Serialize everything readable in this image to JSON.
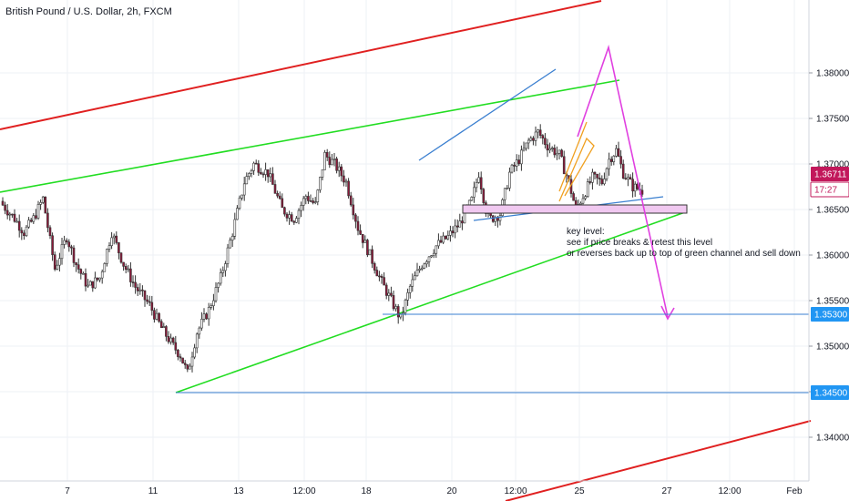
{
  "chart_data": {
    "type": "candlestick",
    "title": "British Pound / U.S. Dollar, 2h, FXCM",
    "symbol": "GBPUSD",
    "timeframe": "2h",
    "ylim": [
      1.336,
      1.3835
    ],
    "y_ticks": [
      "1.38000",
      "1.37500",
      "1.37000",
      "1.36500",
      "1.36000",
      "1.35500",
      "1.35000",
      "1.34500",
      "1.34000"
    ],
    "x_ticks": [
      "7",
      "11",
      "13",
      "12:00",
      "18",
      "20",
      "12:00",
      "25",
      "27",
      "12:00",
      "Feb"
    ],
    "last_price": "1.36711",
    "countdown": "17:27",
    "level_labels": [
      "1.35300",
      "1.34500"
    ],
    "annotation": [
      "key level:",
      "see if price breaks & retest this level",
      "or reverses back up to top of green channel and sell down"
    ],
    "colors": {
      "up": "#ffffff",
      "down": "#8a1a3a",
      "wick": "#333333",
      "green_channel": "#22dd22",
      "red_channel": "#e02020",
      "blue": "#3a7fd0",
      "magenta": "#e040e0",
      "orange": "#f0a020",
      "price_tag": "#c2185b",
      "level_tag": "#2196f3",
      "key_zone": "#f0c8f0"
    },
    "anchors": [
      [
        0,
        1.3655
      ],
      [
        5,
        1.364
      ],
      [
        9,
        1.3625
      ],
      [
        13,
        1.364
      ],
      [
        17,
        1.3662
      ],
      [
        22,
        1.3585
      ],
      [
        27,
        1.362
      ],
      [
        31,
        1.359
      ],
      [
        36,
        1.3565
      ],
      [
        41,
        1.3575
      ],
      [
        46,
        1.3625
      ],
      [
        51,
        1.359
      ],
      [
        56,
        1.3565
      ],
      [
        62,
        1.3545
      ],
      [
        67,
        1.352
      ],
      [
        72,
        1.35
      ],
      [
        75,
        1.349
      ],
      [
        78,
        1.347
      ],
      [
        82,
        1.3515
      ],
      [
        87,
        1.354
      ],
      [
        92,
        1.3575
      ],
      [
        97,
        1.3625
      ],
      [
        102,
        1.368
      ],
      [
        106,
        1.37
      ],
      [
        112,
        1.369
      ],
      [
        118,
        1.365
      ],
      [
        123,
        1.364
      ],
      [
        128,
        1.3665
      ],
      [
        132,
        1.3655
      ],
      [
        136,
        1.371
      ],
      [
        140,
        1.37
      ],
      [
        145,
        1.368
      ],
      [
        150,
        1.363
      ],
      [
        155,
        1.36
      ],
      [
        160,
        1.357
      ],
      [
        165,
        1.3545
      ],
      [
        168,
        1.353
      ],
      [
        172,
        1.3565
      ],
      [
        177,
        1.359
      ],
      [
        183,
        1.361
      ],
      [
        188,
        1.362
      ],
      [
        193,
        1.3635
      ],
      [
        198,
        1.366
      ],
      [
        201,
        1.369
      ],
      [
        204,
        1.365
      ],
      [
        206,
        1.364
      ],
      [
        210,
        1.3645
      ],
      [
        214,
        1.369
      ],
      [
        218,
        1.3705
      ],
      [
        222,
        1.3725
      ],
      [
        226,
        1.3735
      ],
      [
        230,
        1.372
      ],
      [
        235,
        1.371
      ],
      [
        239,
        1.368
      ],
      [
        242,
        1.365
      ],
      [
        245,
        1.3665
      ],
      [
        249,
        1.3685
      ],
      [
        253,
        1.368
      ],
      [
        256,
        1.3705
      ],
      [
        259,
        1.3715
      ],
      [
        262,
        1.369
      ],
      [
        266,
        1.3675
      ],
      [
        270,
        1.3671
      ]
    ]
  }
}
